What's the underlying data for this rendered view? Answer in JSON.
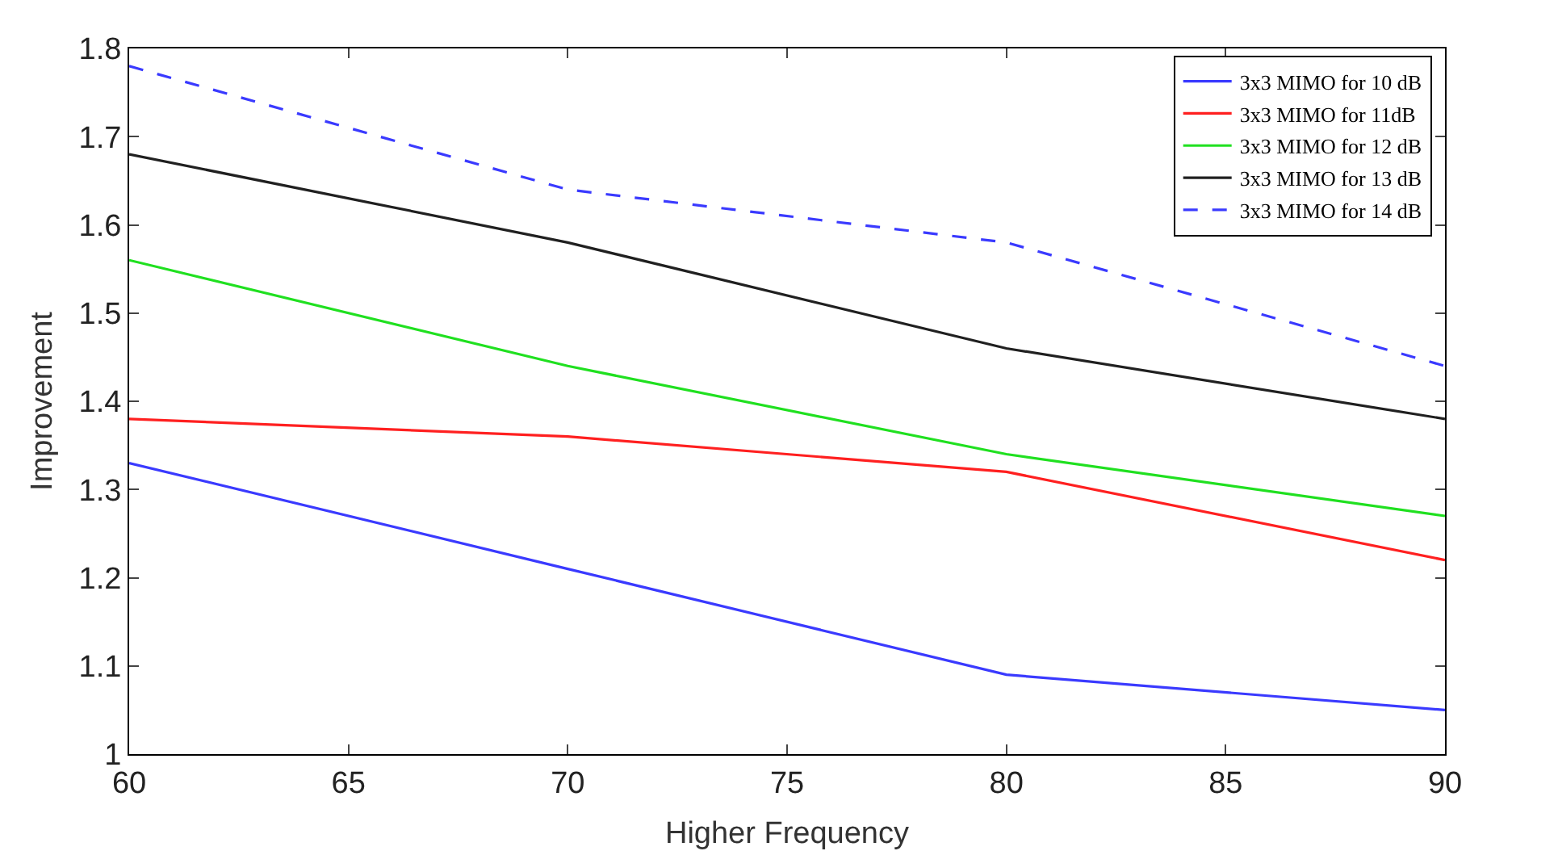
{
  "chart_data": {
    "type": "line",
    "xlabel": "Higher Frequency",
    "ylabel": "Improvement",
    "x": [
      60,
      70,
      80,
      90
    ],
    "series": [
      {
        "name": "3x3 MIMO for 10 dB",
        "color": "#3a3aff",
        "values": [
          1.33,
          1.21,
          1.09,
          1.05
        ]
      },
      {
        "name": "3x3 MIMO for 11dB",
        "color": "#ff2020",
        "values": [
          1.38,
          1.36,
          1.32,
          1.22
        ]
      },
      {
        "name": "3x3 MIMO for 12 dB",
        "color": "#20e020",
        "values": [
          1.56,
          1.44,
          1.34,
          1.27
        ]
      },
      {
        "name": "3x3 MIMO for 13 dB",
        "color": "#202020",
        "values": [
          1.68,
          1.58,
          1.46,
          1.38
        ]
      },
      {
        "name": "3x3 MIMO for 14 dB",
        "color": "#3a3aff",
        "values": [
          1.78,
          1.64,
          1.58,
          1.44
        ],
        "line_style": "dashed"
      }
    ],
    "xlim": [
      60,
      90
    ],
    "xticks": [
      60,
      65,
      70,
      75,
      80,
      85,
      90
    ],
    "ylim": [
      1,
      1.8
    ],
    "yticks": [
      1,
      1.1,
      1.2,
      1.3,
      1.4,
      1.5,
      1.6,
      1.7,
      1.8
    ],
    "grid": false,
    "legend": "top right",
    "marker": "none",
    "line_style": "solid"
  }
}
